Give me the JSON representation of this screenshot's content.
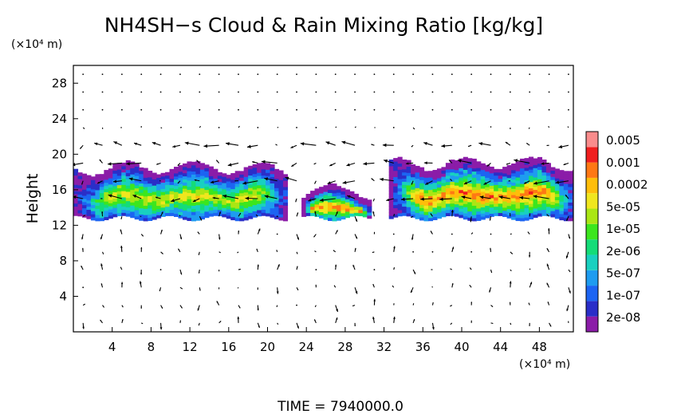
{
  "chart_data": {
    "type": "heatmap",
    "title": "NH4SH−s Cloud & Rain Mixing Ratio [kg/kg]",
    "ylabel": "Height",
    "xunit": "(×10⁴ m)",
    "yunit": "(×10⁴ m)",
    "xlim": [
      0,
      51.5
    ],
    "ylim": [
      0,
      30
    ],
    "xticks": [
      4,
      8,
      12,
      16,
      20,
      24,
      28,
      32,
      36,
      40,
      44,
      48
    ],
    "yticks": [
      4,
      8,
      12,
      16,
      20,
      24,
      28
    ],
    "grid": false,
    "time_label": "TIME = 7940000.0",
    "colorbar": {
      "labels": [
        "0.005",
        "0.001",
        "0.0002",
        "5e-05",
        "1e-05",
        "2e-06",
        "5e-07",
        "1e-07",
        "2e-08"
      ],
      "colors": [
        "#8b1ca8",
        "#2a2ec8",
        "#1c64f2",
        "#1e9cf0",
        "#19d0c0",
        "#14dc78",
        "#3ce61e",
        "#aae614",
        "#f0e61e",
        "#ffbe0a",
        "#ff7814",
        "#f01e1e",
        "#fa8c8c"
      ]
    },
    "cloud_regions": [
      {
        "x_range": [
          0,
          22
        ],
        "y_range": [
          12.5,
          19
        ],
        "max_level": "0.0002"
      },
      {
        "x_range": [
          23.5,
          30.5
        ],
        "y_range": [
          12.5,
          16.5
        ],
        "max_level": "0.001"
      },
      {
        "x_range": [
          32.5,
          51.5
        ],
        "y_range": [
          12.5,
          19.5
        ],
        "max_level": "0.001"
      }
    ],
    "vector_field": {
      "x_spacing": 2,
      "y_spacing": 2,
      "jet_layer_y": [
        14,
        21
      ]
    }
  }
}
